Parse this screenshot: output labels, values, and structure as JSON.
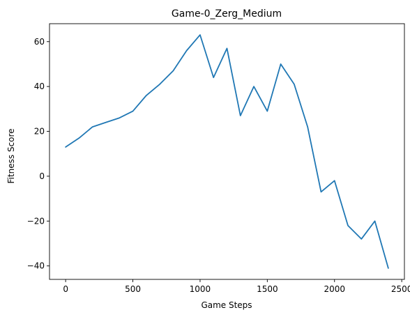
{
  "chart_data": {
    "type": "line",
    "title": "Game-0_Zerg_Medium",
    "xlabel": "Game Steps",
    "ylabel": "Fitness Score",
    "xlim": [
      -120,
      2520
    ],
    "ylim": [
      -46,
      68
    ],
    "xticks": [
      0,
      500,
      1000,
      1500,
      2000,
      2500
    ],
    "yticks": [
      -40,
      -20,
      0,
      20,
      40,
      60
    ],
    "grid": false,
    "line_color": "#1f77b4",
    "series": [
      {
        "x": [
          0,
          100,
          200,
          300,
          400,
          500,
          600,
          700,
          800,
          900,
          1000,
          1100,
          1200,
          1300,
          1400,
          1500,
          1600,
          1700,
          1800,
          1900,
          2000,
          2100,
          2200,
          2300,
          2400
        ],
        "y": [
          13,
          17,
          22,
          24,
          26,
          29,
          36,
          41,
          47,
          56,
          63,
          44,
          57,
          27,
          40,
          29,
          50,
          41,
          22,
          -7,
          -2,
          -22,
          -28,
          -20,
          -41
        ]
      }
    ]
  }
}
